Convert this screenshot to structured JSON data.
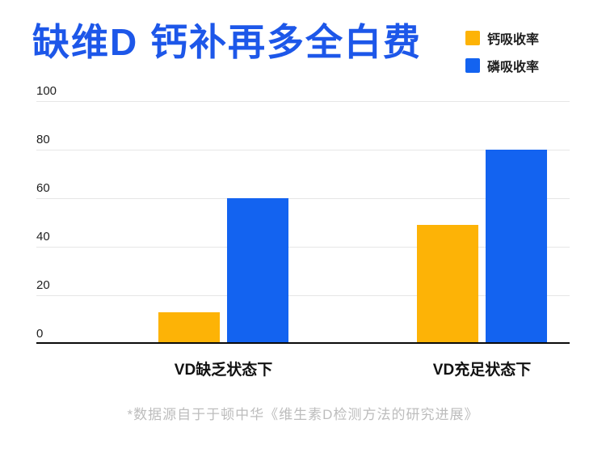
{
  "page": {
    "title": "缺维D 钙补再多全白费",
    "footer_note": "*数据源自于于顿中华《维生素D检测方法的研究进展》"
  },
  "colors": {
    "title_text": "#1D57E9",
    "calcium_series": "#FDB306",
    "phosphorus_series": "#1363F0",
    "footer_text": "#BDBDBD",
    "axis_text": "#1F1F1F",
    "gridline": "#E6E6E6",
    "baseline": "#0A0A0A"
  },
  "chart_data": {
    "type": "bar",
    "title": "缺维D 钙补再多全白费",
    "categories": [
      "VD缺乏状态下",
      "VD充足状态下"
    ],
    "series": [
      {
        "name": "钙吸收率",
        "color": "#FDB306",
        "values": [
          13,
          49
        ]
      },
      {
        "name": "磷吸收率",
        "color": "#1363F0",
        "values": [
          60,
          80
        ]
      }
    ],
    "ylim": [
      0,
      100
    ],
    "yticks": [
      0,
      20,
      40,
      60,
      80,
      100
    ],
    "grid": true,
    "legend_position": "top-right",
    "source_note": "*数据源自于于顿中华《维生素D检测方法的研究进展》"
  }
}
